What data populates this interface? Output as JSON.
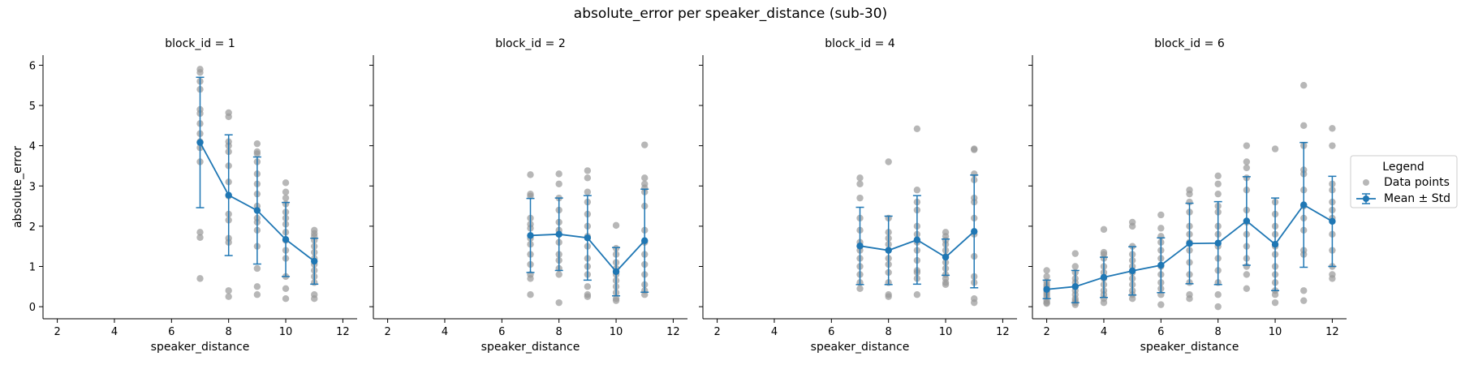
{
  "suptitle": "absolute_error per speaker_distance (sub-30)",
  "legend": {
    "title": "Legend",
    "placement": "right",
    "items": [
      {
        "label": "Data points",
        "color": "#999999"
      },
      {
        "label": "Mean ± Std",
        "color": "#1f77b4"
      }
    ]
  },
  "chart_data": {
    "type": "scatter",
    "xlabel": "speaker_distance",
    "ylabel": "absolute_error",
    "xlim": [
      1.5,
      12.5
    ],
    "ylim": [
      -0.3,
      6.25
    ],
    "xticks": [
      2,
      4,
      6,
      8,
      10,
      12
    ],
    "yticks": [
      0,
      1,
      2,
      3,
      4,
      5,
      6
    ],
    "panels": [
      {
        "title": "block_id = 1",
        "points": [
          {
            "x": 7,
            "y": [
              5.9,
              5.82,
              5.6,
              5.4,
              4.9,
              4.8,
              4.55,
              4.3,
              4.1,
              3.95,
              3.6,
              1.85,
              1.72,
              0.7
            ]
          },
          {
            "x": 8,
            "y": [
              4.82,
              4.72,
              4.1,
              4.0,
              3.85,
              3.5,
              3.1,
              2.75,
              2.3,
              2.15,
              1.7,
              1.6,
              0.4,
              0.25
            ]
          },
          {
            "x": 9,
            "y": [
              4.05,
              3.85,
              3.8,
              3.6,
              3.3,
              3.05,
              2.8,
              2.5,
              2.2,
              2.1,
              1.9,
              1.5,
              0.95,
              0.5,
              0.3
            ]
          },
          {
            "x": 10,
            "y": [
              3.08,
              2.85,
              2.7,
              2.55,
              2.35,
              2.2,
              2.05,
              1.85,
              1.65,
              1.4,
              1.2,
              0.75,
              0.45,
              0.2
            ]
          },
          {
            "x": 11,
            "y": [
              1.9,
              1.82,
              1.75,
              1.65,
              1.5,
              1.35,
              1.2,
              1.05,
              0.9,
              0.75,
              0.6,
              0.3,
              0.2
            ]
          }
        ],
        "mean": [
          4.08,
          2.77,
          2.39,
          1.67,
          1.13
        ],
        "std": [
          1.62,
          1.5,
          1.33,
          0.92,
          0.57
        ]
      },
      {
        "title": "block_id = 2",
        "points": [
          {
            "x": 7,
            "y": [
              3.28,
              2.8,
              2.75,
              2.2,
              2.05,
              1.95,
              1.7,
              1.55,
              1.3,
              1.05,
              0.8,
              0.7,
              0.3
            ]
          },
          {
            "x": 8,
            "y": [
              3.3,
              3.05,
              2.7,
              2.4,
              2.1,
              1.9,
              1.8,
              1.6,
              1.3,
              1.15,
              0.95,
              0.8,
              0.1
            ]
          },
          {
            "x": 9,
            "y": [
              3.38,
              3.2,
              2.85,
              2.6,
              2.3,
              2.0,
              1.75,
              1.5,
              1.2,
              1.0,
              0.8,
              0.5,
              0.3,
              0.25
            ]
          },
          {
            "x": 10,
            "y": [
              2.02,
              1.45,
              1.3,
              1.1,
              0.95,
              0.8,
              0.65,
              0.5,
              0.35,
              0.2,
              0.15
            ]
          },
          {
            "x": 11,
            "y": [
              4.02,
              3.2,
              3.05,
              2.95,
              2.85,
              2.5,
              1.9,
              1.6,
              1.3,
              1.05,
              0.8,
              0.55,
              0.4,
              0.3
            ]
          }
        ],
        "mean": [
          1.77,
          1.8,
          1.71,
          0.87,
          1.64
        ],
        "std": [
          0.92,
          0.9,
          1.05,
          0.6,
          1.28
        ]
      },
      {
        "title": "block_id = 4",
        "points": [
          {
            "x": 7,
            "y": [
              3.2,
              3.05,
              2.7,
              2.2,
              1.9,
              1.6,
              1.5,
              1.4,
              1.2,
              1.0,
              0.8,
              0.6,
              0.45
            ]
          },
          {
            "x": 8,
            "y": [
              3.6,
              2.2,
              1.85,
              1.7,
              1.55,
              1.4,
              1.2,
              1.05,
              0.85,
              0.6,
              0.3,
              0.25
            ]
          },
          {
            "x": 9,
            "y": [
              4.42,
              2.9,
              2.6,
              2.4,
              2.0,
              1.8,
              1.6,
              1.4,
              1.15,
              0.9,
              0.85,
              0.7,
              0.3
            ]
          },
          {
            "x": 10,
            "y": [
              1.85,
              1.75,
              1.65,
              1.55,
              1.4,
              1.25,
              1.1,
              0.95,
              0.8,
              0.7,
              0.6,
              0.55
            ]
          },
          {
            "x": 11,
            "y": [
              3.92,
              3.9,
              3.3,
              3.15,
              2.7,
              2.6,
              2.2,
              1.8,
              1.25,
              0.75,
              0.6,
              0.2,
              0.1
            ]
          }
        ],
        "mean": [
          1.51,
          1.4,
          1.66,
          1.23,
          1.87
        ],
        "std": [
          0.96,
          0.85,
          1.1,
          0.45,
          1.4
        ]
      },
      {
        "title": "block_id = 6",
        "points": [
          {
            "x": 2,
            "y": [
              0.9,
              0.75,
              0.62,
              0.55,
              0.5,
              0.45,
              0.4,
              0.35,
              0.3,
              0.25,
              0.15,
              0.1,
              0.08
            ]
          },
          {
            "x": 3,
            "y": [
              1.32,
              1.0,
              0.85,
              0.7,
              0.6,
              0.5,
              0.4,
              0.3,
              0.2,
              0.15,
              0.1,
              0.05
            ]
          },
          {
            "x": 4,
            "y": [
              1.92,
              1.35,
              1.3,
              1.2,
              1.0,
              0.85,
              0.7,
              0.55,
              0.4,
              0.3,
              0.2,
              0.1
            ]
          },
          {
            "x": 5,
            "y": [
              2.1,
              2.0,
              1.5,
              1.3,
              1.15,
              1.0,
              0.85,
              0.7,
              0.55,
              0.4,
              0.3,
              0.2
            ]
          },
          {
            "x": 6,
            "y": [
              2.28,
              1.95,
              1.75,
              1.6,
              1.4,
              1.2,
              1.0,
              0.8,
              0.6,
              0.45,
              0.3,
              0.05
            ]
          },
          {
            "x": 7,
            "y": [
              2.9,
              2.8,
              2.6,
              2.35,
              2.0,
              1.8,
              1.6,
              1.4,
              1.1,
              0.8,
              0.6,
              0.3,
              0.2
            ]
          },
          {
            "x": 8,
            "y": [
              3.25,
              3.05,
              2.8,
              2.5,
              2.35,
              2.0,
              1.8,
              1.5,
              1.2,
              0.9,
              0.6,
              0.3,
              0.0
            ]
          },
          {
            "x": 9,
            "y": [
              4.0,
              3.6,
              3.45,
              3.2,
              2.9,
              2.4,
              2.1,
              1.8,
              1.5,
              1.2,
              1.0,
              0.8,
              0.45
            ]
          },
          {
            "x": 10,
            "y": [
              3.92,
              2.6,
              2.3,
              2.0,
              1.8,
              1.5,
              1.3,
              1.0,
              0.8,
              0.6,
              0.4,
              0.3,
              0.1
            ]
          },
          {
            "x": 11,
            "y": [
              5.5,
              4.5,
              4.0,
              3.4,
              3.3,
              2.9,
              2.5,
              2.2,
              1.9,
              1.4,
              1.3,
              0.4,
              0.15
            ]
          },
          {
            "x": 12,
            "y": [
              4.43,
              4.0,
              3.05,
              2.9,
              2.6,
              2.4,
              2.2,
              1.8,
              1.4,
              1.0,
              0.8,
              0.7
            ]
          }
        ],
        "mean": [
          0.43,
          0.5,
          0.73,
          0.89,
          1.03,
          1.57,
          1.58,
          2.13,
          1.55,
          2.53,
          2.12
        ],
        "std": [
          0.23,
          0.4,
          0.5,
          0.6,
          0.68,
          1.0,
          1.03,
          1.1,
          1.15,
          1.55,
          1.12
        ]
      }
    ]
  }
}
